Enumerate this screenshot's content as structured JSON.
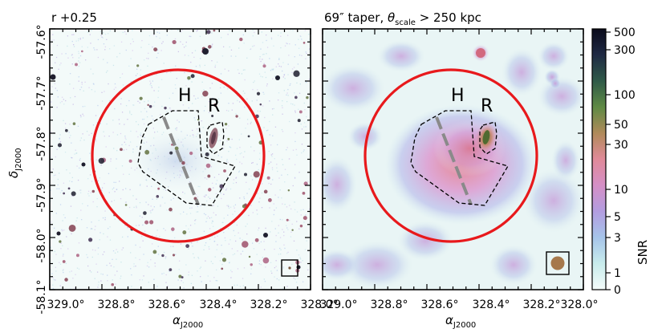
{
  "panels": [
    {
      "title": "r +0.25",
      "region_labels": [
        "H",
        "R"
      ],
      "kind": "optical"
    },
    {
      "title_prefix": "69″ taper, ",
      "title_theta": "θ",
      "title_sub": "scale",
      "title_suffix": " > 250 kpc",
      "region_labels": [
        "H",
        "R"
      ],
      "kind": "radio"
    }
  ],
  "axes": {
    "ra_ticks_left": [
      "329.0°",
      "328.8°",
      "328.6°",
      "328.4°",
      "328.2°",
      "328.0°"
    ],
    "ra_ticks_right": [
      "329.0°",
      "328.8°",
      "328.6°",
      "328.4°",
      "328.2°",
      "328.0°"
    ],
    "dec_ticks": [
      "-57.6°",
      "-57.7°",
      "-57.8°",
      "-57.9°",
      "-58.0°",
      "-58.1°"
    ],
    "xlabel_main": "α",
    "xlabel_sub": "J2000",
    "ylabel_main": "δ",
    "ylabel_sub": "J2000"
  },
  "colorbar": {
    "label": "SNR",
    "ticks": [
      "500",
      "300",
      "100",
      "50",
      "30",
      "10",
      "5",
      "3",
      "1",
      "0"
    ],
    "stops": [
      "#f4fbfa",
      "#c8ecec",
      "#a6c4ea",
      "#b39de0",
      "#d58fc6",
      "#e08a99",
      "#b08a5a",
      "#5f8a44",
      "#2f5a48",
      "#1f2a44",
      "#0a0a1a"
    ]
  },
  "colors": {
    "circle": "#e8191c",
    "dashed_line": "#8a8a8a",
    "region_outline": "#000000",
    "beam_fill": "#a6784c"
  }
}
